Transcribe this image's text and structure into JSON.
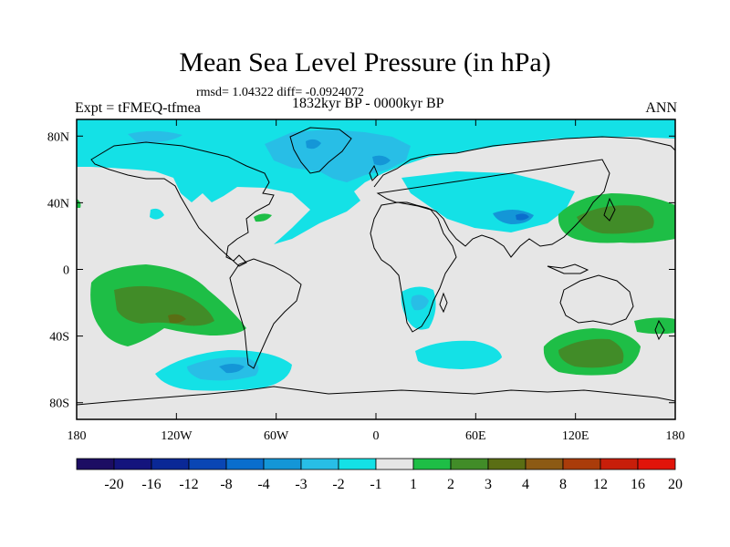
{
  "title": "Mean Sea Level Pressure (in hPa)",
  "stats": "rmsd= 1.04322 diff= -0.0924072",
  "period": "1832kyr BP - 0000kyr BP",
  "experiment": "Expt = tFMEQ-tfmea",
  "season": "ANN",
  "map": {
    "lat_ticks": [
      "80N",
      "40N",
      "0",
      "40S",
      "80S"
    ],
    "lon_ticks": [
      "180",
      "120W",
      "60W",
      "0",
      "60E",
      "120E",
      "180"
    ],
    "lat_values": [
      80,
      40,
      0,
      -40,
      -80
    ],
    "lon_values": [
      -180,
      -120,
      -60,
      0,
      60,
      120,
      180
    ],
    "lat_range": [
      -90,
      90
    ],
    "lon_range": [
      -180,
      180
    ]
  },
  "colorbar": {
    "labels": [
      "-20",
      "-16",
      "-12",
      "-8",
      "-4",
      "-3",
      "-2",
      "-1",
      "1",
      "2",
      "3",
      "4",
      "8",
      "12",
      "16",
      "20"
    ],
    "colors": [
      "#1c0d63",
      "#14147d",
      "#0a2896",
      "#0a46b4",
      "#0a6ecd",
      "#1496d7",
      "#28bee6",
      "#14e1e6",
      "#e6e6e6",
      "#1ebe46",
      "#418c28",
      "#5a6e14",
      "#8c5a14",
      "#aa3c0a",
      "#c81e0a",
      "#e1140a"
    ]
  },
  "palette": {
    "neutral": "#e6e6e6",
    "neg1": "#14e1e6",
    "neg2": "#28bee6",
    "neg3": "#1496d7",
    "pos1": "#1ebe46",
    "pos2": "#418c28",
    "pos3": "#5a6e14"
  }
}
